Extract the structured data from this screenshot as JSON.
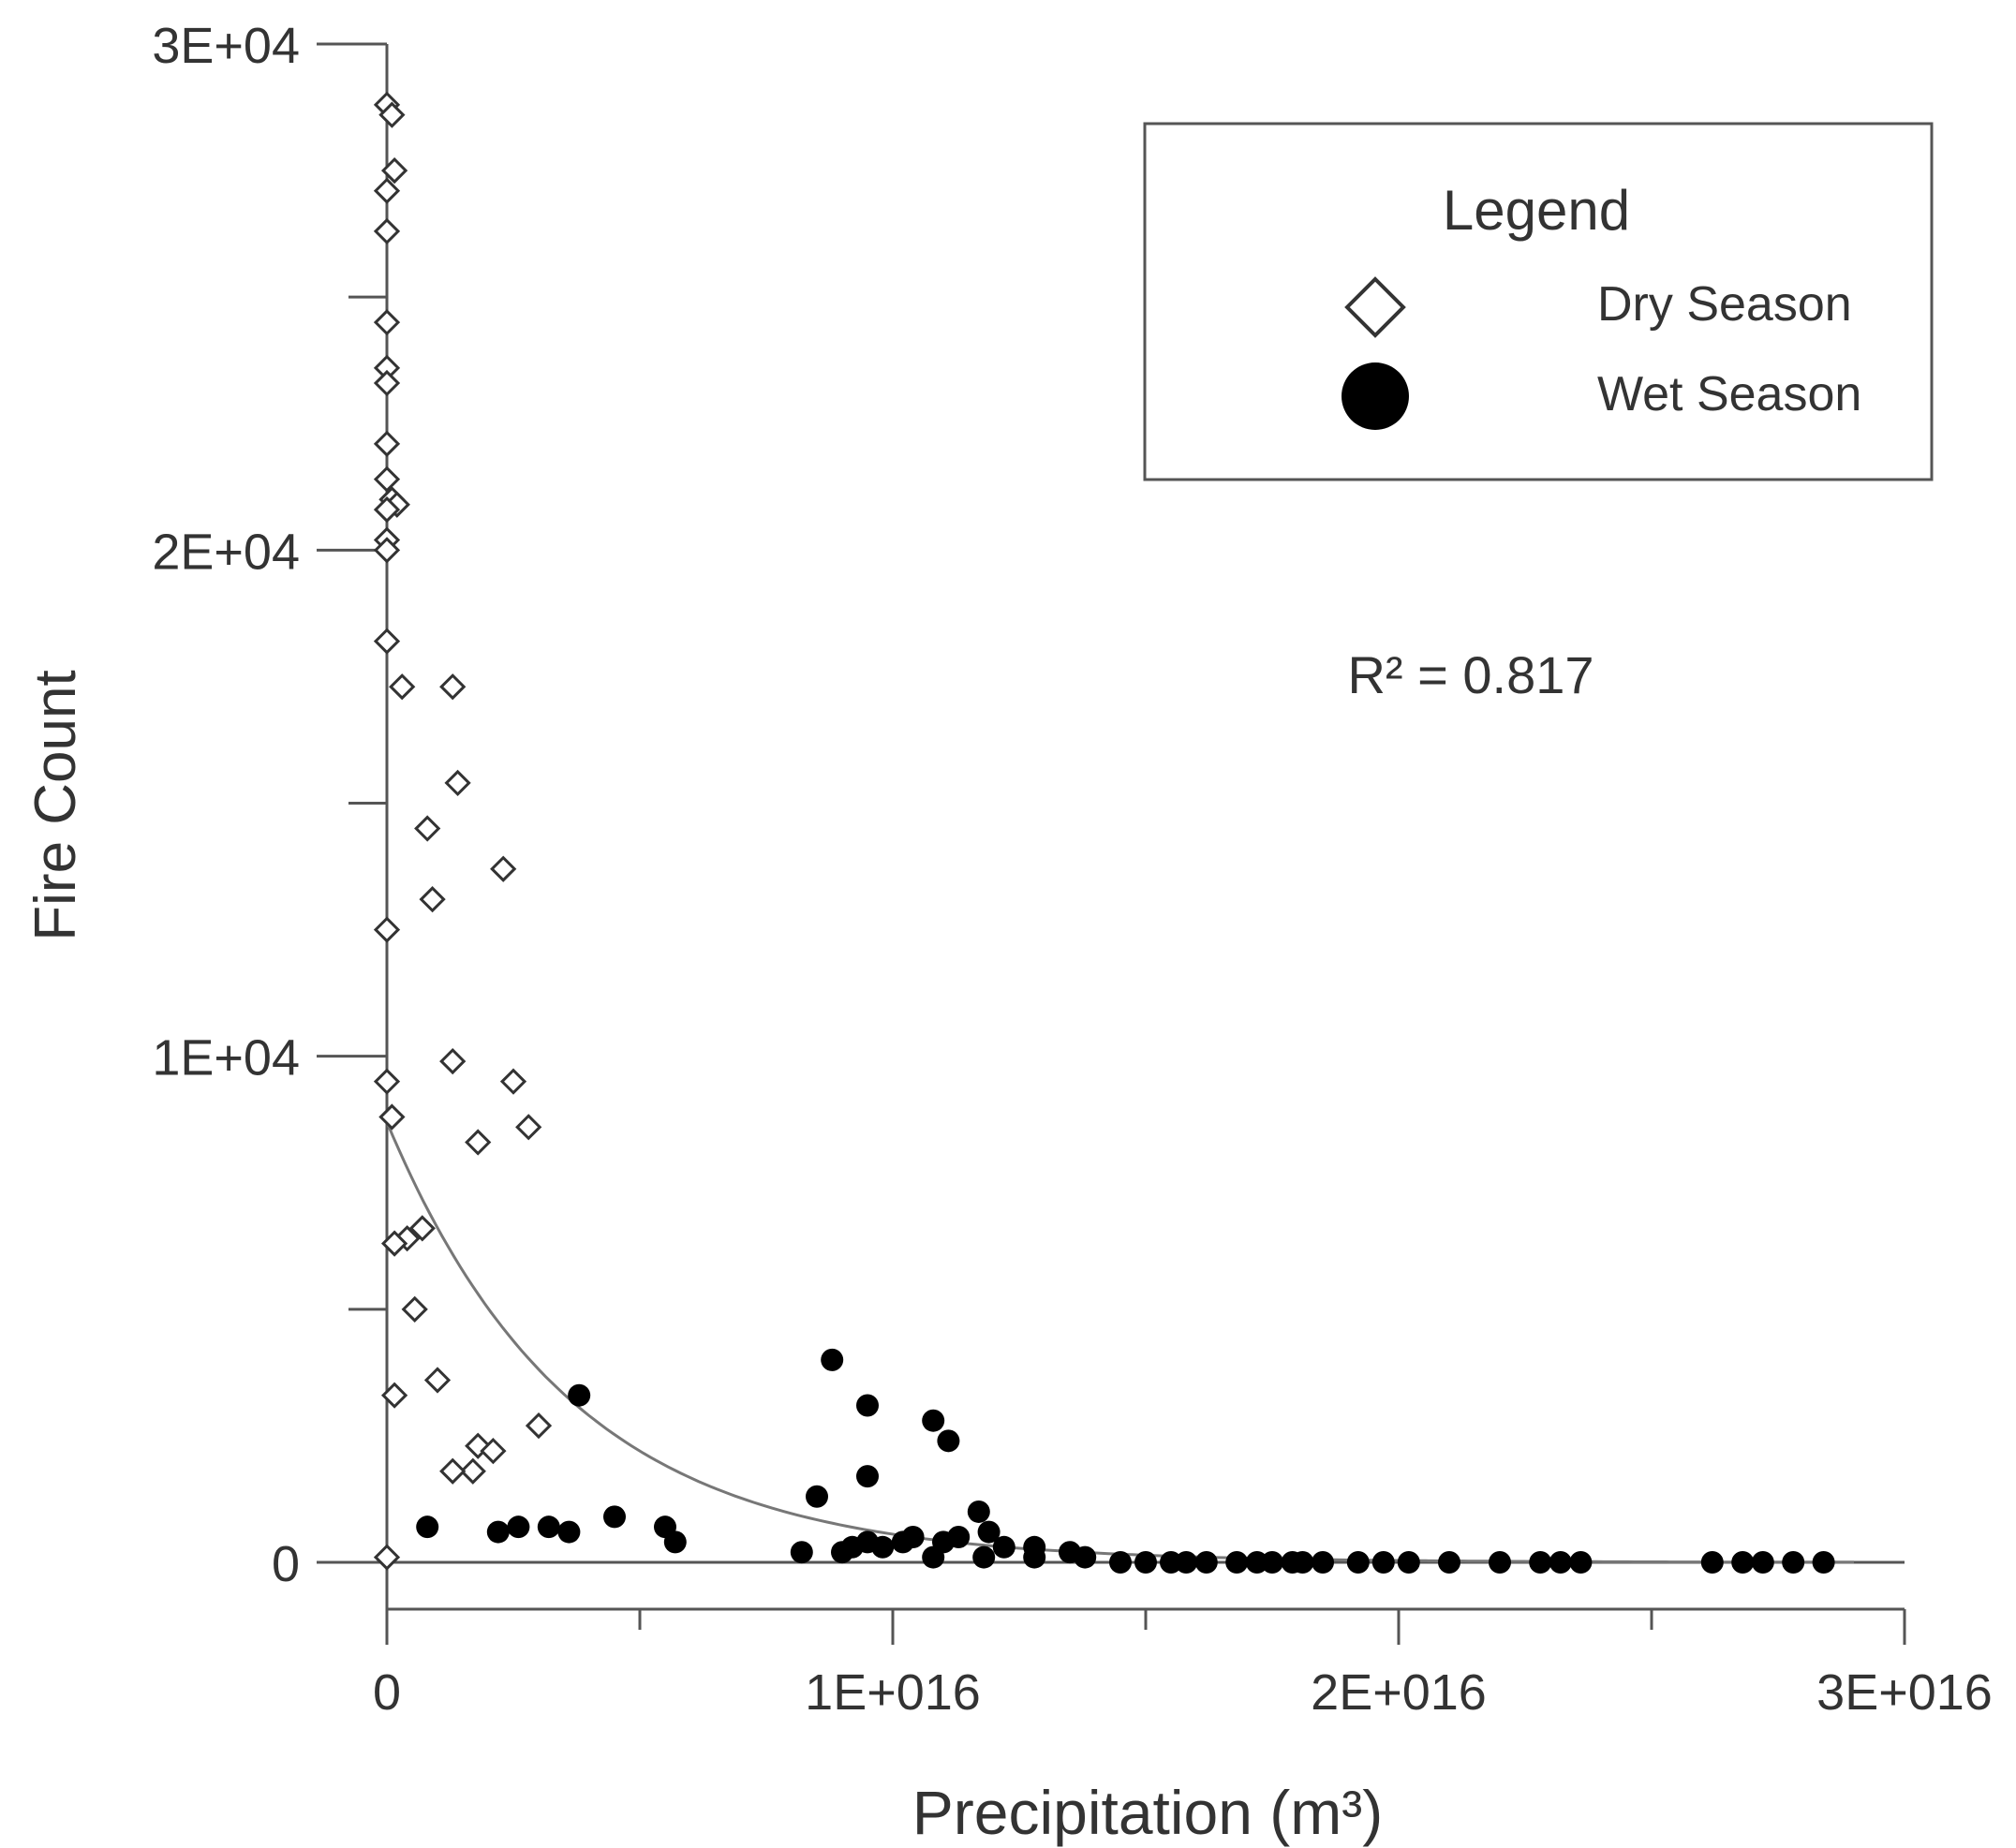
{
  "chart_data": {
    "type": "scatter",
    "title": "",
    "xlabel": "Precipitation (m³)",
    "ylabel": "Fire Count",
    "xlim": [
      0,
      3e+16
    ],
    "ylim": [
      0,
      30000
    ],
    "x_ticks": [
      0,
      1e+16,
      2e+16,
      3e+16
    ],
    "x_tick_labels": [
      "0",
      "1E+016",
      "2E+016",
      "3E+016"
    ],
    "y_ticks": [
      0,
      10000,
      20000,
      30000
    ],
    "y_tick_labels": [
      "0",
      "1E+04",
      "2E+04",
      "3E+04"
    ],
    "y_minor_ticks": [
      5000,
      15000,
      25000
    ],
    "x_minor_ticks": [
      5000000000000000.0,
      1.5e+16,
      2.5e+16
    ],
    "grid": false,
    "legend": {
      "title": "Legend",
      "position": "top-right",
      "entries": [
        {
          "label": "Dry Season",
          "marker": "diamond-open"
        },
        {
          "label": "Wet Season",
          "marker": "circle-filled"
        }
      ]
    },
    "annotation": "R² = 0.817",
    "fit": {
      "type": "exponential",
      "a": 8700,
      "b": 2.75e-16,
      "x_range": [
        0,
        2.9e+16
      ]
    },
    "series": [
      {
        "name": "Dry Season",
        "marker": "diamond-open",
        "points": [
          [
            0,
            28800
          ],
          [
            100000000000000.0,
            28600
          ],
          [
            150000000000000.0,
            27500
          ],
          [
            0,
            27100
          ],
          [
            0,
            26300
          ],
          [
            0,
            24500
          ],
          [
            0,
            23600
          ],
          [
            0,
            23300
          ],
          [
            0,
            22100
          ],
          [
            0,
            21400
          ],
          [
            100000000000000.0,
            21000
          ],
          [
            200000000000000.0,
            20900
          ],
          [
            0,
            20800
          ],
          [
            0,
            20200
          ],
          [
            0,
            20000
          ],
          [
            0,
            18200
          ],
          [
            300000000000000.0,
            17300
          ],
          [
            1300000000000000.0,
            17300
          ],
          [
            1400000000000000.0,
            15400
          ],
          [
            800000000000000.0,
            14500
          ],
          [
            2300000000000000.0,
            13700
          ],
          [
            900000000000000.0,
            13100
          ],
          [
            0,
            12500
          ],
          [
            1300000000000000.0,
            9900
          ],
          [
            2500000000000000.0,
            9500
          ],
          [
            0,
            9500
          ],
          [
            1800000000000000.0,
            8300
          ],
          [
            2800000000000000.0,
            8600
          ],
          [
            100000000000000.0,
            8800
          ],
          [
            700000000000000.0,
            6600
          ],
          [
            400000000000000.0,
            6400
          ],
          [
            150000000000000.0,
            6300
          ],
          [
            550000000000000.0,
            5000
          ],
          [
            1000000000000000.0,
            3600
          ],
          [
            150000000000000.0,
            3300
          ],
          [
            3000000000000000.0,
            2700
          ],
          [
            1800000000000000.0,
            2300
          ],
          [
            2100000000000000.0,
            2200
          ],
          [
            1700000000000000.0,
            1800
          ],
          [
            1300000000000000.0,
            1800
          ],
          [
            0,
            100
          ]
        ]
      },
      {
        "name": "Wet Season",
        "marker": "circle-filled",
        "points": [
          [
            3800000000000000.0,
            3300
          ],
          [
            800000000000000.0,
            700
          ],
          [
            2200000000000000.0,
            600
          ],
          [
            2600000000000000.0,
            700
          ],
          [
            3200000000000000.0,
            700
          ],
          [
            3600000000000000.0,
            600
          ],
          [
            4500000000000000.0,
            900
          ],
          [
            5500000000000000.0,
            700
          ],
          [
            5700000000000000.0,
            400
          ],
          [
            8800000000000000.0,
            4000
          ],
          [
            9500000000000000.0,
            3100
          ],
          [
            8500000000000000.0,
            1300
          ],
          [
            9500000000000000.0,
            1700
          ],
          [
            1.08e+16,
            2800
          ],
          [
            1.11e+16,
            2400
          ],
          [
            1.17e+16,
            1000
          ],
          [
            8200000000000000.0,
            200
          ],
          [
            9000000000000000.0,
            200
          ],
          [
            9200000000000000.0,
            300
          ],
          [
            9500000000000000.0,
            400
          ],
          [
            9800000000000000.0,
            300
          ],
          [
            1.02e+16,
            400
          ],
          [
            1.04e+16,
            500
          ],
          [
            1.08e+16,
            100
          ],
          [
            1.1e+16,
            400
          ],
          [
            1.13e+16,
            500
          ],
          [
            1.19e+16,
            600
          ],
          [
            1.22e+16,
            300
          ],
          [
            1.18e+16,
            100
          ],
          [
            1.28e+16,
            300
          ],
          [
            1.28e+16,
            100
          ],
          [
            1.35e+16,
            200
          ],
          [
            1.38e+16,
            100
          ],
          [
            1.45e+16,
            0
          ],
          [
            1.5e+16,
            0
          ],
          [
            1.55e+16,
            0
          ],
          [
            1.58e+16,
            0
          ],
          [
            1.62e+16,
            0
          ],
          [
            1.68e+16,
            0
          ],
          [
            1.72e+16,
            0
          ],
          [
            1.75e+16,
            0
          ],
          [
            1.79e+16,
            0
          ],
          [
            1.81e+16,
            0
          ],
          [
            1.85e+16,
            0
          ],
          [
            1.92e+16,
            0
          ],
          [
            1.97e+16,
            0
          ],
          [
            2.02e+16,
            0
          ],
          [
            2.1e+16,
            0
          ],
          [
            2.2e+16,
            0
          ],
          [
            2.28e+16,
            0
          ],
          [
            2.32e+16,
            0
          ],
          [
            2.36e+16,
            0
          ],
          [
            2.62e+16,
            0
          ],
          [
            2.68e+16,
            0
          ],
          [
            2.72e+16,
            0
          ],
          [
            2.78e+16,
            0
          ],
          [
            2.84e+16,
            0
          ]
        ]
      }
    ]
  }
}
